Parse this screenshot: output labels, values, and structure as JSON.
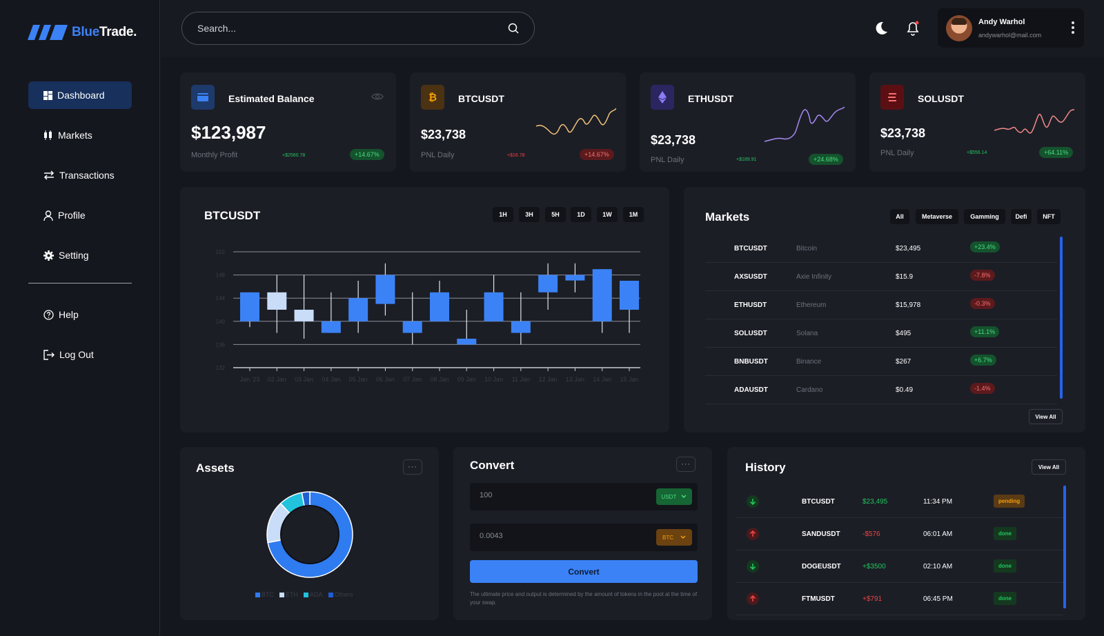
{
  "brand": {
    "name_part1": "Blue",
    "name_part2": "Trade."
  },
  "nav": {
    "items": [
      {
        "label": "Dashboard"
      },
      {
        "label": "Markets"
      },
      {
        "label": "Transactions"
      },
      {
        "label": "Profile"
      },
      {
        "label": "Setting"
      }
    ],
    "secondary": [
      {
        "label": "Help"
      },
      {
        "label": "Log Out"
      }
    ]
  },
  "search": {
    "placeholder": "Search..."
  },
  "user": {
    "name": "Andy Warhol",
    "email": "andywarhol@mail.com"
  },
  "cards": {
    "balance": {
      "title": "Estimated Balance",
      "value": "$123,987",
      "sub": "Monthly Profit",
      "delta": "+$2560.78",
      "pill": "+14.67%"
    },
    "btc": {
      "title": "BTCUSDT",
      "value": "$23,738",
      "sub": "PNL Daily",
      "delta": "+$16.78",
      "pill": "+14.67%"
    },
    "eth": {
      "title": "ETHUSDT",
      "value": "$23,738",
      "sub": "PNL Daily",
      "delta": "+$189.91",
      "pill": "+24.68%"
    },
    "sol": {
      "title": "SOLUSDT",
      "value": "$23,738",
      "sub": "PNL Daily",
      "delta": "+$556.14",
      "pill": "+64.11%"
    }
  },
  "chart_panel": {
    "title": "BTCUSDT",
    "timeframes": [
      "1H",
      "3H",
      "5H",
      "1D",
      "1W",
      "1M"
    ]
  },
  "chart_data": {
    "type": "candlestick",
    "title": "BTCUSDT",
    "ylim": [
      132,
      152
    ],
    "yticks": [
      132,
      136,
      140,
      144,
      148,
      152
    ],
    "grid": true,
    "categories": [
      "Jan '23",
      "02 Jan",
      "03 Jan",
      "04 Jan",
      "05 Jan",
      "06 Jan",
      "07 Jan",
      "08 Jan",
      "09 Jan",
      "10 Jan",
      "11 Jan",
      "12 Jan",
      "13 Jan",
      "14 Jan",
      "15 Jan"
    ],
    "candles": [
      {
        "open": 145,
        "close": 140,
        "high": 145,
        "low": 139,
        "color": "blue"
      },
      {
        "open": 145,
        "close": 142,
        "high": 148,
        "low": 138,
        "color": "light"
      },
      {
        "open": 142,
        "close": 140,
        "high": 148,
        "low": 137,
        "color": "light"
      },
      {
        "open": 140,
        "close": 138,
        "high": 145,
        "low": 138,
        "color": "blue"
      },
      {
        "open": 140,
        "close": 144,
        "high": 147,
        "low": 138,
        "color": "blue"
      },
      {
        "open": 143,
        "close": 148,
        "high": 150,
        "low": 141,
        "color": "blue"
      },
      {
        "open": 140,
        "close": 138,
        "high": 145,
        "low": 136,
        "color": "blue"
      },
      {
        "open": 145,
        "close": 140,
        "high": 147,
        "low": 140,
        "color": "blue"
      },
      {
        "open": 137,
        "close": 136,
        "high": 142,
        "low": 136,
        "color": "blue"
      },
      {
        "open": 145,
        "close": 140,
        "high": 148,
        "low": 140,
        "color": "blue"
      },
      {
        "open": 140,
        "close": 138,
        "high": 145,
        "low": 136,
        "color": "blue"
      },
      {
        "open": 145,
        "close": 148,
        "high": 150,
        "low": 142,
        "color": "blue"
      },
      {
        "open": 148,
        "close": 148,
        "high": 150,
        "low": 145,
        "color": "blue"
      },
      {
        "open": 149,
        "close": 140,
        "high": 149,
        "low": 138,
        "color": "blue"
      },
      {
        "open": 147,
        "close": 142,
        "high": 147,
        "low": 138,
        "color": "blue"
      }
    ]
  },
  "markets": {
    "title": "Markets",
    "tabs": [
      "All",
      "Metaverse",
      "Gamming",
      "Defi",
      "NFT"
    ],
    "rows": [
      {
        "symbol": "BTCUSDT",
        "name": "Bitcoin",
        "price": "$23,495",
        "change": "+23.4%",
        "up": true
      },
      {
        "symbol": "AXSUSDT",
        "name": "Axie Infinity",
        "price": "$15.9",
        "change": "-7.8%",
        "up": false
      },
      {
        "symbol": "ETHUSDT",
        "name": "Ethereum",
        "price": "$15,978",
        "change": "-0.3%",
        "up": false
      },
      {
        "symbol": "SOLUSDT",
        "name": "Solana",
        "price": "$495",
        "change": "+11.1%",
        "up": true
      },
      {
        "symbol": "BNBUSDT",
        "name": "Binance",
        "price": "$267",
        "change": "+6.7%",
        "up": true
      },
      {
        "symbol": "ADAUSDT",
        "name": "Cardano",
        "price": "$0.49",
        "change": "-1.4%",
        "up": false
      }
    ],
    "view_all": "View All"
  },
  "assets": {
    "title": "Assets",
    "more": "···",
    "legend": [
      "BTC",
      "ETH",
      "ADA",
      "Others"
    ],
    "slices": [
      {
        "label": "BTC",
        "value": 72,
        "color": "#2f7bf0"
      },
      {
        "label": "ETH",
        "value": 16,
        "color": "#c9dcf8"
      },
      {
        "label": "ADA",
        "value": 9,
        "color": "#22c2dd"
      },
      {
        "label": "Others",
        "value": 3,
        "color": "#1f5fd0"
      }
    ]
  },
  "convert": {
    "title": "Convert",
    "more": "···",
    "from_value": "100",
    "from_currency": "USDT",
    "to_value": "0.0043",
    "to_currency": "BTC",
    "button": "Convert",
    "note": "The ultimate price and output is determined by the amount of tokens in the pool at the time of your swap."
  },
  "history": {
    "title": "History",
    "view_all": "View All",
    "rows": [
      {
        "symbol": "BTCUSDT",
        "amount": "$23,495",
        "time": "11:34 PM",
        "status": "pending",
        "dir": "down"
      },
      {
        "symbol": "SANDUSDT",
        "amount": "-$576",
        "time": "06:01 AM",
        "status": "done",
        "dir": "up"
      },
      {
        "symbol": "DOGEUSDT",
        "amount": "+$3500",
        "time": "02:10 AM",
        "status": "done",
        "dir": "down"
      },
      {
        "symbol": "FTMUSDT",
        "amount": "+$791",
        "time": "06:45 PM",
        "status": "done",
        "dir": "up"
      }
    ]
  }
}
